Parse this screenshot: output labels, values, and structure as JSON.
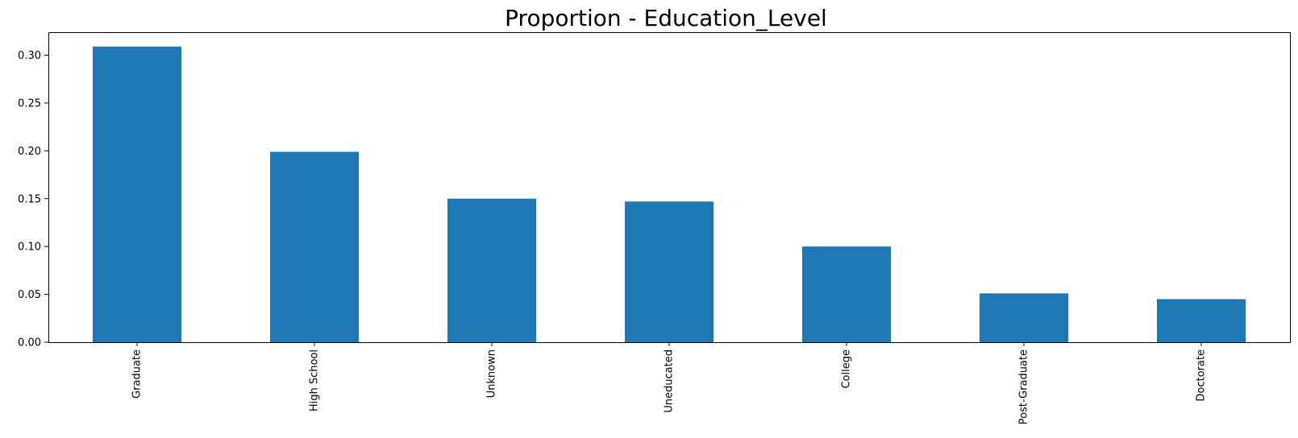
{
  "chart_data": {
    "type": "bar",
    "title": "Proportion - Education_Level",
    "xlabel": "",
    "ylabel": "",
    "categories": [
      "Graduate",
      "High School",
      "Unknown",
      "Uneducated",
      "College",
      "Post-Graduate",
      "Doctorate"
    ],
    "values": [
      0.309,
      0.199,
      0.15,
      0.147,
      0.1,
      0.051,
      0.045
    ],
    "ylim": [
      0,
      0.324
    ],
    "yticks": [
      "0.00",
      "0.05",
      "0.10",
      "0.15",
      "0.20",
      "0.25",
      "0.30"
    ],
    "ytick_values": [
      0,
      0.05,
      0.1,
      0.15,
      0.2,
      0.25,
      0.3
    ],
    "grid": false,
    "legend": "none",
    "bar_color": "#1f77b4",
    "tick_label_rotation": "vertical"
  }
}
